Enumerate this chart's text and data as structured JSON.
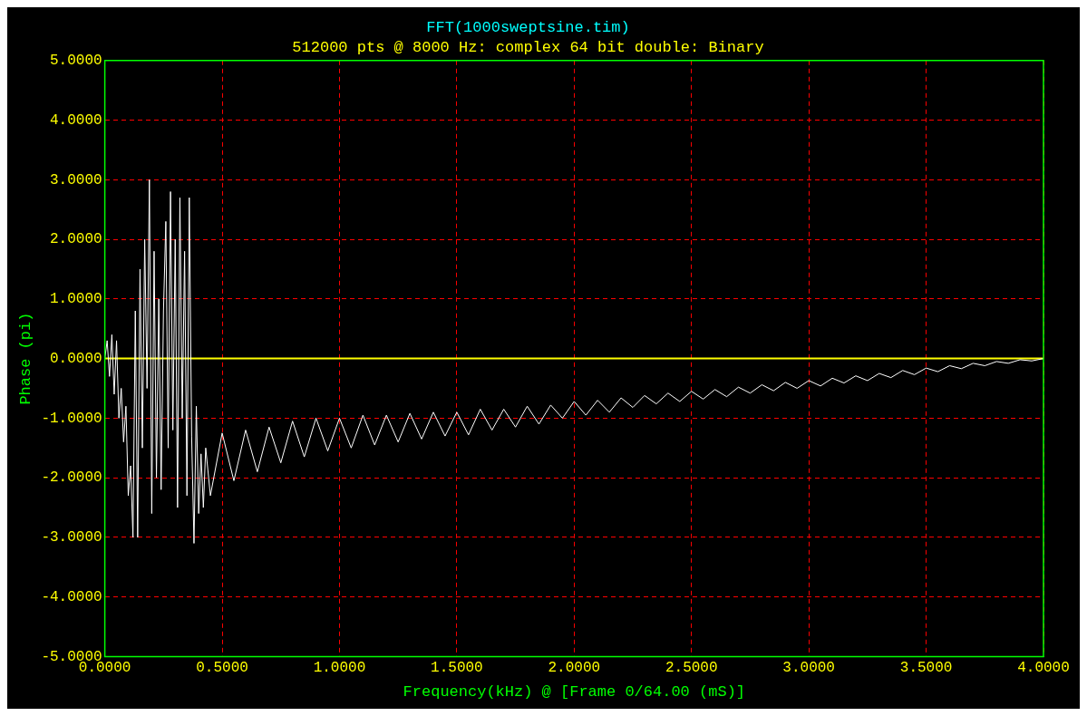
{
  "chart_data": {
    "type": "line",
    "title": "FFT(1000sweptsine.tim)",
    "subtitle": "512000 pts @ 8000 Hz: complex 64 bit double: Binary",
    "xlabel": "Frequency(kHz) @ [Frame 0/64.00 (mS)]",
    "ylabel": "Phase (pi)",
    "xlim": [
      0,
      4
    ],
    "xticks": [
      {
        "value": 0,
        "label": "0.0000"
      },
      {
        "value": 0.5,
        "label": "0.5000"
      },
      {
        "value": 1,
        "label": "1.0000"
      },
      {
        "value": 1.5,
        "label": "1.5000"
      },
      {
        "value": 2,
        "label": "2.0000"
      },
      {
        "value": 2.5,
        "label": "2.5000"
      },
      {
        "value": 3,
        "label": "3.0000"
      },
      {
        "value": 3.5,
        "label": "3.5000"
      },
      {
        "value": 4,
        "label": "4.0000"
      }
    ],
    "ylim": [
      -5,
      5
    ],
    "yticks": [
      {
        "value": -5,
        "label": "-5.0000"
      },
      {
        "value": -4,
        "label": "-4.0000"
      },
      {
        "value": -3,
        "label": "-3.0000"
      },
      {
        "value": -2,
        "label": "-2.0000"
      },
      {
        "value": -1,
        "label": "-1.0000"
      },
      {
        "value": 0,
        "label": "0.0000"
      },
      {
        "value": 1,
        "label": "1.0000"
      },
      {
        "value": 2,
        "label": "2.0000"
      },
      {
        "value": 3,
        "label": "3.0000"
      },
      {
        "value": 4,
        "label": "4.0000"
      },
      {
        "value": 5,
        "label": "5.0000"
      }
    ],
    "grid": true,
    "legend": false,
    "marker": "none",
    "line_style": "solid",
    "ref_lines": [
      {
        "axis": "y",
        "value": 0,
        "color": "#ffff00"
      }
    ],
    "series": [
      {
        "color": "#ffffff",
        "x": [
          0,
          0.01,
          0.02,
          0.03,
          0.04,
          0.05,
          0.06,
          0.07,
          0.08,
          0.09,
          0.1,
          0.11,
          0.12,
          0.13,
          0.14,
          0.15,
          0.16,
          0.17,
          0.18,
          0.19,
          0.2,
          0.21,
          0.22,
          0.23,
          0.24,
          0.25,
          0.26,
          0.27,
          0.28,
          0.29,
          0.3,
          0.31,
          0.32,
          0.33,
          0.34,
          0.35,
          0.36,
          0.37,
          0.38,
          0.39,
          0.4,
          0.41,
          0.42,
          0.43,
          0.45,
          0.5,
          0.55,
          0.6,
          0.65,
          0.7,
          0.75,
          0.8,
          0.85,
          0.9,
          0.95,
          1,
          1.05,
          1.1,
          1.15,
          1.2,
          1.25,
          1.3,
          1.35,
          1.4,
          1.45,
          1.5,
          1.55,
          1.6,
          1.65,
          1.7,
          1.75,
          1.8,
          1.85,
          1.9,
          1.95,
          2,
          2.05,
          2.1,
          2.15,
          2.2,
          2.25,
          2.3,
          2.35,
          2.4,
          2.45,
          2.5,
          2.55,
          2.6,
          2.65,
          2.7,
          2.75,
          2.8,
          2.85,
          2.9,
          2.95,
          3,
          3.05,
          3.1,
          3.15,
          3.2,
          3.25,
          3.3,
          3.35,
          3.4,
          3.45,
          3.5,
          3.55,
          3.6,
          3.65,
          3.7,
          3.75,
          3.8,
          3.85,
          3.9,
          3.95,
          4
        ],
        "values": [
          0,
          0.3,
          -0.3,
          0.4,
          -0.6,
          0.3,
          -1,
          -0.5,
          -1.4,
          -0.8,
          -2.3,
          -1.8,
          -3,
          0.8,
          -3,
          1.5,
          -1.5,
          2,
          -0.5,
          3,
          -2.6,
          1.8,
          -2,
          1,
          -2.2,
          0.8,
          2.3,
          -1.5,
          2.8,
          -1.2,
          2,
          -2.5,
          2.7,
          -1,
          1.8,
          -2.3,
          2.7,
          -1.3,
          -3.1,
          -0.8,
          -2.6,
          -1.6,
          -2.5,
          -1.5,
          -2.3,
          -1.25,
          -2.05,
          -1.2,
          -1.9,
          -1.15,
          -1.75,
          -1.05,
          -1.65,
          -1,
          -1.55,
          -1,
          -1.5,
          -0.95,
          -1.45,
          -0.95,
          -1.4,
          -0.92,
          -1.35,
          -0.9,
          -1.3,
          -0.9,
          -1.28,
          -0.85,
          -1.2,
          -0.85,
          -1.15,
          -0.8,
          -1.1,
          -0.78,
          -1,
          -0.72,
          -0.95,
          -0.7,
          -0.9,
          -0.66,
          -0.82,
          -0.62,
          -0.76,
          -0.58,
          -0.72,
          -0.55,
          -0.68,
          -0.52,
          -0.64,
          -0.48,
          -0.58,
          -0.44,
          -0.54,
          -0.4,
          -0.5,
          -0.37,
          -0.46,
          -0.33,
          -0.41,
          -0.29,
          -0.37,
          -0.25,
          -0.32,
          -0.2,
          -0.27,
          -0.16,
          -0.22,
          -0.12,
          -0.17,
          -0.08,
          -0.12,
          -0.05,
          -0.08,
          -0.02,
          -0.04,
          0
        ]
      }
    ]
  }
}
